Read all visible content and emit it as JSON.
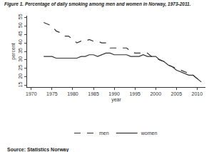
{
  "chart_data": {
    "type": "line",
    "title": "Figure 1. Percentage of daily smoking among men and women in Norway, 1973-2011.",
    "x_label": "year",
    "y_label": "percent",
    "annotations": [
      "Source: Statistics Norway"
    ],
    "x": [
      1973,
      1974,
      1975,
      1976,
      1977,
      1978,
      1979,
      1980,
      1981,
      1982,
      1983,
      1984,
      1985,
      1986,
      1987,
      1988,
      1989,
      1990,
      1991,
      1992,
      1993,
      1994,
      1995,
      1996,
      1997,
      1998,
      1999,
      2000,
      2001,
      2002,
      2003,
      2004,
      2005,
      2006,
      2007,
      2008,
      2009,
      2010,
      2011
    ],
    "series": [
      {
        "name": "men",
        "color": "#333333",
        "line_style": "dash",
        "values": [
          52,
          51,
          50,
          47,
          46,
          44,
          44,
          42,
          40,
          41,
          41,
          42,
          41,
          41,
          40,
          40,
          37,
          37,
          37,
          37,
          37,
          35,
          34,
          34,
          34,
          34,
          32,
          31,
          30,
          29,
          27,
          26,
          25,
          24,
          23,
          22,
          21,
          19,
          17
        ]
      },
      {
        "name": "women",
        "color": "#333333",
        "line_style": "solid",
        "values": [
          32,
          32,
          32,
          31,
          31,
          31,
          31,
          31,
          31,
          32,
          32,
          33,
          33,
          32,
          33,
          34,
          34,
          33,
          33,
          33,
          33,
          32,
          32,
          32,
          33,
          32,
          32,
          32,
          30,
          29,
          27,
          26,
          24,
          23,
          22,
          21,
          21,
          19,
          17
        ]
      }
    ],
    "xlim": [
      1969,
      2012
    ],
    "xticks": [
      1970,
      1975,
      1980,
      1985,
      1990,
      1995,
      2000,
      2005,
      2010
    ],
    "ylim": [
      14,
      56
    ],
    "yticks": [
      15,
      20,
      25,
      30,
      35,
      40,
      45,
      50,
      55
    ],
    "grid": false,
    "legend": "bottom"
  }
}
